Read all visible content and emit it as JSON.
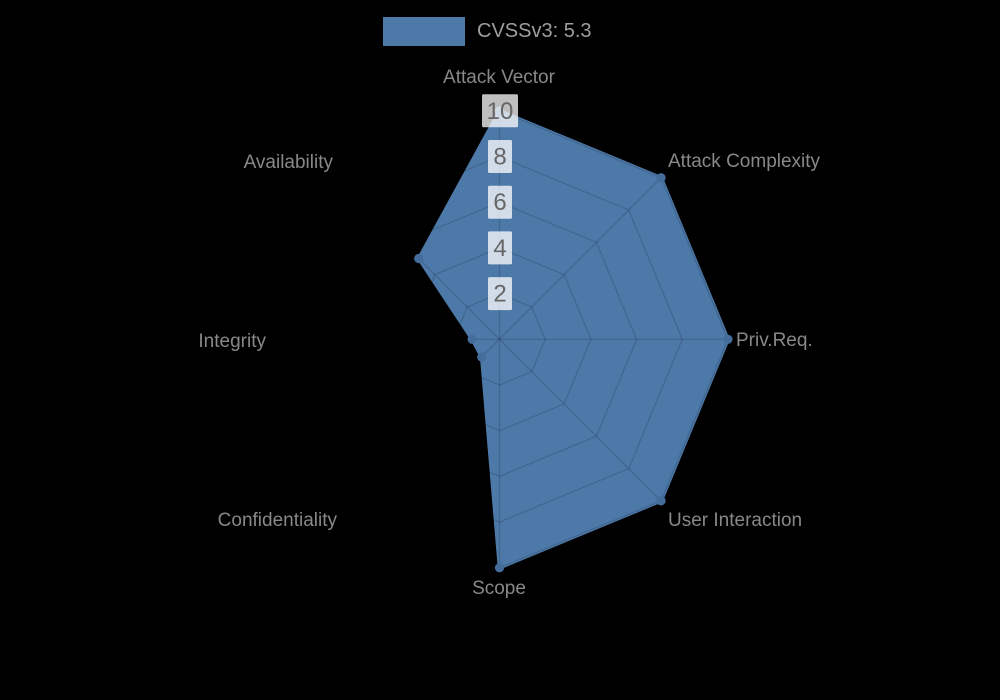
{
  "legend": {
    "label": "CVSSv3: 5.3",
    "color": "#4d79a9"
  },
  "chart_data": {
    "type": "radar",
    "axes": [
      "Attack Vector",
      "Attack Complexity",
      "Priv.Req.",
      "User Interaction",
      "Scope",
      "Confidentiality",
      "Integrity",
      "Availability"
    ],
    "series": [
      {
        "name": "CVSSv3: 5.3",
        "values": [
          10,
          10,
          10,
          10,
          10,
          1.1,
          1.2,
          5
        ],
        "color": "#4d79a9"
      }
    ],
    "ticks": [
      2,
      4,
      6,
      8,
      10
    ],
    "rmin": 0,
    "rmax": 10,
    "grid": true,
    "legend_position": "top",
    "colors": {
      "fill": "#4d79a9",
      "point": "#446d9c",
      "grid_line": "rgba(0,0,0,0.14)",
      "tick_backdrop": "rgba(255,255,255,0.75)",
      "tick_text": "#666666",
      "axis_label_text": "#888888",
      "background": "#000000"
    }
  }
}
